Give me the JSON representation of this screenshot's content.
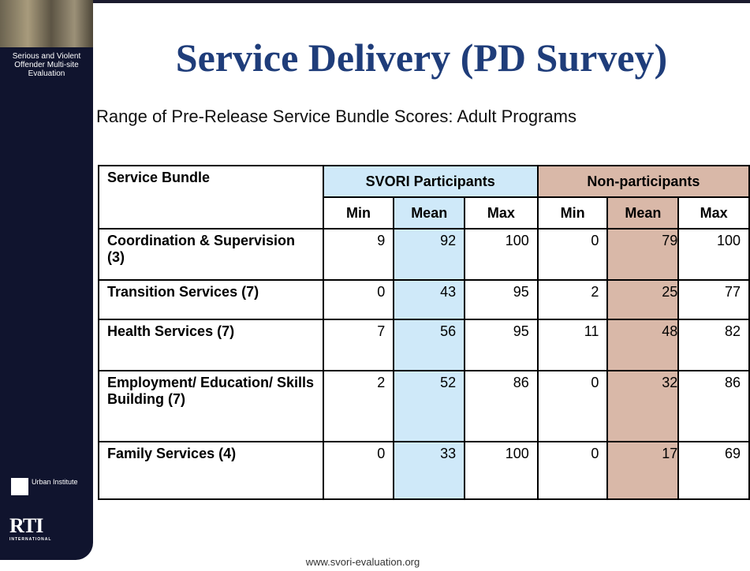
{
  "sidebar": {
    "program": "Serious and Violent Offender Multi-site Evaluation",
    "urban": "Urban Institute",
    "rti": "RTI",
    "rti_sub": "INTERNATIONAL"
  },
  "header": {
    "title": "Service Delivery (PD Survey)",
    "subtitle": "Range of Pre-Release Service Bundle Scores: Adult Programs"
  },
  "table": {
    "corner": "Service Bundle",
    "groups": [
      "SVORI Participants",
      "Non-participants"
    ],
    "subheaders": [
      "Min",
      "Mean",
      "Max",
      "Min",
      "Mean",
      "Max"
    ],
    "rows": [
      {
        "label": "Coordination & Supervision (3)",
        "values": [
          9,
          92,
          100,
          0,
          79,
          100
        ]
      },
      {
        "label": "Transition Services (7)",
        "values": [
          0,
          43,
          95,
          2,
          25,
          77
        ]
      },
      {
        "label": "Health Services (7)",
        "values": [
          7,
          56,
          95,
          11,
          48,
          82
        ]
      },
      {
        "label": "Employment/ Education/ Skills Building (7)",
        "values": [
          2,
          52,
          86,
          0,
          32,
          86
        ]
      },
      {
        "label": "Family Services (4)",
        "values": [
          0,
          33,
          100,
          0,
          17,
          69
        ]
      }
    ]
  },
  "footer": {
    "url": "www.svori-evaluation.org"
  }
}
